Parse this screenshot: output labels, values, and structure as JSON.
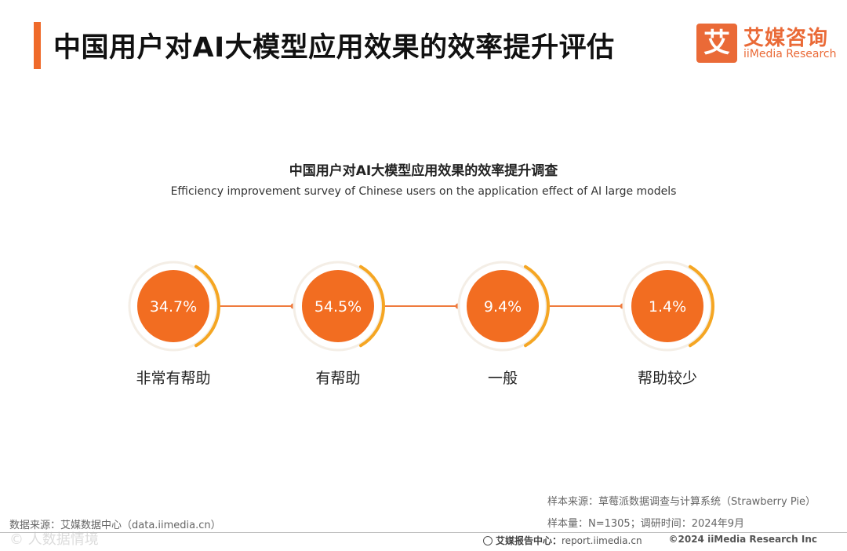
{
  "header": {
    "title": "中国用户对AI大模型应用效果的效率提升评估"
  },
  "logo": {
    "mark": "艾",
    "cn": "艾媒咨询",
    "en": "iiMedia Research"
  },
  "chart_data": {
    "type": "bar",
    "title": "中国用户对AI大模型应用效果的效率提升调查",
    "subtitle": "Efficiency improvement survey of Chinese users on the application effect of AI large models",
    "categories": [
      "非常有帮助",
      "有帮助",
      "一般",
      "帮助较少"
    ],
    "values": [
      34.7,
      54.5,
      9.4,
      1.4
    ],
    "value_labels": [
      "34.7%",
      "54.5%",
      "9.4%",
      "1.4%"
    ],
    "unit": "%",
    "colors": {
      "circle": "#f26d21",
      "arc": "#f5a623",
      "line": "#ef7b3e",
      "halo": "#f4eee6"
    }
  },
  "sources": {
    "sample_source": "样本来源：草莓派数据调查与计算系统（Strawberry Pie）",
    "sample_size": "样本量：N=1305；调研时间：2024年9月",
    "data_source": "数据来源：艾媒数据中心（data.iimedia.cn）"
  },
  "watermark": "©  人数据情境",
  "footer": {
    "report_label": "艾媒报告中心：",
    "report_url": "report.iimedia.cn",
    "copyright": "©2024  iiMedia Research  Inc"
  }
}
